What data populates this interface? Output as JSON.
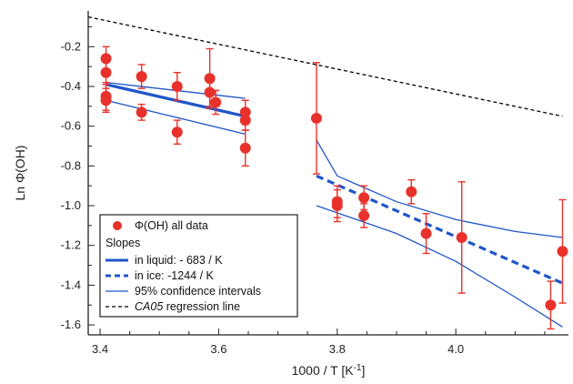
{
  "chart_data": {
    "type": "scatter",
    "xlabel": "1000 / T  [K",
    "xlabel_sup": "-1",
    "xlabel_end": "]",
    "ylabel": "Ln Φ(OH)",
    "xlim": [
      3.38,
      4.19
    ],
    "ylim": [
      -1.65,
      -0.02
    ],
    "x_ticks": [
      3.4,
      3.6,
      3.8,
      4.0
    ],
    "x_tick_labels": [
      "3.4",
      "3.6",
      "3.8",
      "4.0"
    ],
    "y_ticks": [
      -0.2,
      -0.4,
      -0.6,
      -0.8,
      -1.0,
      -1.2,
      -1.4,
      -1.6
    ],
    "y_tick_labels": [
      "-0.2",
      "-0.4",
      "-0.6",
      "-0.8",
      "-1.0",
      "-1.2",
      "-1.4",
      "-1.6"
    ],
    "legend_position": "bottom-left",
    "legend": {
      "data_label": "Φ(OH) all data",
      "slopes_header": "Slopes",
      "liquid_label": "in liquid: - 683 / K",
      "ice_label": "in ice:  -1244 / K",
      "ci_label": "95% confidence intervals",
      "ca05_label_italic": "CA05",
      "ca05_label_rest": " regression line"
    },
    "points": [
      {
        "x": 3.41,
        "y": -0.26,
        "err": 0.06
      },
      {
        "x": 3.41,
        "y": -0.33,
        "err": 0.06
      },
      {
        "x": 3.41,
        "y": -0.45,
        "err": 0.07
      },
      {
        "x": 3.41,
        "y": -0.47,
        "err": 0.06
      },
      {
        "x": 3.47,
        "y": -0.35,
        "err": 0.06
      },
      {
        "x": 3.47,
        "y": -0.53,
        "err": 0.04
      },
      {
        "x": 3.53,
        "y": -0.4,
        "err": 0.07
      },
      {
        "x": 3.53,
        "y": -0.63,
        "err": 0.06
      },
      {
        "x": 3.585,
        "y": -0.36,
        "err": 0.15
      },
      {
        "x": 3.585,
        "y": -0.43,
        "err": 0.07
      },
      {
        "x": 3.595,
        "y": -0.48,
        "err": 0.06
      },
      {
        "x": 3.645,
        "y": -0.53,
        "err": 0.06
      },
      {
        "x": 3.645,
        "y": -0.57,
        "err": 0.05
      },
      {
        "x": 3.645,
        "y": -0.71,
        "err": 0.09
      },
      {
        "x": 3.765,
        "y": -0.56,
        "err": 0.28
      },
      {
        "x": 3.8,
        "y": -0.98,
        "err": 0.08
      },
      {
        "x": 3.8,
        "y": -1.0,
        "err": 0.08
      },
      {
        "x": 3.845,
        "y": -0.96,
        "err": 0.06
      },
      {
        "x": 3.845,
        "y": -1.05,
        "err": 0.06
      },
      {
        "x": 3.925,
        "y": -0.93,
        "err": 0.06
      },
      {
        "x": 3.95,
        "y": -1.14,
        "err": 0.1
      },
      {
        "x": 4.01,
        "y": -1.16,
        "err": 0.28
      },
      {
        "x": 4.16,
        "y": -1.5,
        "err": 0.12
      },
      {
        "x": 4.18,
        "y": -1.23,
        "err": 0.26
      }
    ],
    "series": [
      {
        "style": "thick-solid",
        "x": [
          3.41,
          3.645
        ],
        "y": [
          -0.39,
          -0.55
        ]
      },
      {
        "style": "thin-solid",
        "x": [
          3.41,
          3.645
        ],
        "y": [
          -0.38,
          -0.46
        ]
      },
      {
        "style": "thin-solid",
        "x": [
          3.41,
          3.645
        ],
        "y": [
          -0.47,
          -0.64
        ]
      },
      {
        "style": "thick-dashed",
        "x": [
          3.765,
          4.18
        ],
        "y": [
          -0.85,
          -1.39
        ]
      },
      {
        "style": "thin-solid",
        "x": [
          3.765,
          3.8,
          3.9,
          4.0,
          4.1,
          4.18
        ],
        "y": [
          -0.67,
          -0.85,
          -0.98,
          -1.07,
          -1.13,
          -1.16
        ]
      },
      {
        "style": "thin-solid",
        "x": [
          3.765,
          3.9,
          4.0,
          4.1,
          4.18
        ],
        "y": [
          -1.0,
          -1.14,
          -1.28,
          -1.46,
          -1.61
        ]
      },
      {
        "style": "black-dashed",
        "x": [
          3.38,
          4.18
        ],
        "y": [
          -0.05,
          -0.55
        ]
      }
    ],
    "colors": {
      "data": "#e8312a",
      "fit": "#1f56c8",
      "ca05": "#000000"
    }
  }
}
